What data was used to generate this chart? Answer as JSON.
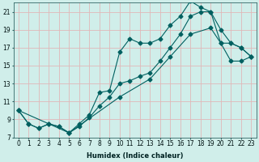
{
  "xlabel": "Humidex (Indice chaleur)",
  "bg_color": "#d0eeea",
  "grid_color": "#e0b8b8",
  "line_color": "#006060",
  "xlim": [
    -0.5,
    23.5
  ],
  "ylim": [
    7,
    22
  ],
  "yticks": [
    7,
    9,
    11,
    13,
    15,
    17,
    19,
    21
  ],
  "xticks": [
    0,
    1,
    2,
    3,
    4,
    5,
    6,
    7,
    8,
    9,
    10,
    11,
    12,
    13,
    14,
    15,
    16,
    17,
    18,
    19,
    20,
    21,
    22,
    23
  ],
  "line1_x": [
    0,
    1,
    2,
    3,
    4,
    5,
    6,
    7,
    8,
    9,
    10,
    11,
    12,
    13,
    14,
    15,
    16,
    17,
    18,
    19,
    20,
    21,
    22,
    23
  ],
  "line1_y": [
    10.0,
    8.5,
    8.0,
    8.5,
    8.2,
    7.5,
    8.2,
    9.2,
    10.5,
    11.5,
    13.0,
    13.3,
    13.8,
    14.2,
    15.5,
    17.0,
    18.5,
    20.5,
    21.0,
    21.0,
    19.0,
    17.5,
    17.0,
    16.0
  ],
  "line2_x": [
    0,
    1,
    2,
    3,
    4,
    5,
    6,
    7,
    8,
    9,
    10,
    11,
    12,
    13,
    14,
    15,
    16,
    17,
    18,
    19,
    20,
    21,
    22,
    23
  ],
  "line2_y": [
    10.0,
    8.5,
    8.0,
    8.5,
    8.2,
    7.5,
    8.5,
    9.5,
    12.0,
    12.2,
    16.5,
    18.0,
    17.5,
    17.5,
    18.0,
    19.5,
    20.5,
    22.2,
    21.5,
    21.0,
    17.5,
    17.5,
    17.0,
    16.0
  ],
  "line3_x": [
    0,
    5,
    10,
    13,
    15,
    17,
    19,
    20,
    21,
    22,
    23
  ],
  "line3_y": [
    10.0,
    7.5,
    11.5,
    13.5,
    16.0,
    18.5,
    19.2,
    17.5,
    15.5,
    15.5,
    16.0
  ],
  "xlabel_fontsize": 6,
  "tick_fontsize": 5.5,
  "marker_size": 2.5,
  "line_width": 0.8
}
